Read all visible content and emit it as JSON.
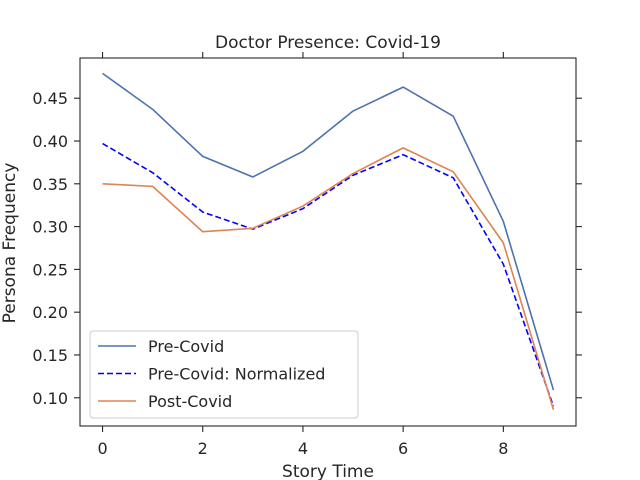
{
  "chart_data": {
    "type": "line",
    "title": "Doctor Presence: Covid-19",
    "xlabel": "Story Time",
    "ylabel": "Persona Frequency",
    "xlim": [
      -0.45,
      9.45
    ],
    "ylim": [
      0.067,
      0.497
    ],
    "x_ticks": [
      0,
      2,
      4,
      6,
      8
    ],
    "y_ticks": [
      0.1,
      0.15,
      0.2,
      0.25,
      0.3,
      0.35,
      0.4,
      0.45
    ],
    "grid": false,
    "legend_position": "lower-left",
    "x": [
      0,
      1,
      2,
      3,
      4,
      5,
      6,
      7,
      8,
      9
    ],
    "series": [
      {
        "name": "Pre-Covid",
        "color": "#4c72b0",
        "style": "solid",
        "values": [
          0.479,
          0.437,
          0.382,
          0.358,
          0.388,
          0.435,
          0.463,
          0.429,
          0.306,
          0.109
        ]
      },
      {
        "name": "Pre-Covid: Normalized",
        "color": "#0000ff",
        "style": "dashed",
        "values": [
          0.397,
          0.363,
          0.317,
          0.297,
          0.321,
          0.36,
          0.384,
          0.357,
          0.256,
          0.09
        ]
      },
      {
        "name": "Post-Covid",
        "color": "#dd8452",
        "style": "solid",
        "values": [
          0.35,
          0.347,
          0.294,
          0.298,
          0.324,
          0.362,
          0.392,
          0.364,
          0.281,
          0.086
        ]
      }
    ]
  }
}
